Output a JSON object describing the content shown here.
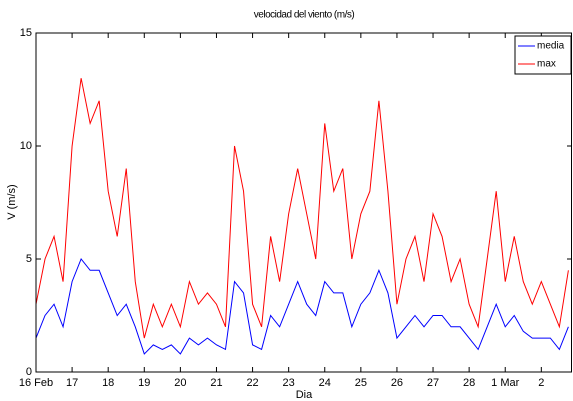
{
  "chart_data": {
    "type": "line",
    "title": "velocidad del viento (m/s)",
    "xlabel": "Dia",
    "ylabel": "V (m/s)",
    "x": [
      16,
      16.25,
      16.5,
      16.75,
      17,
      17.25,
      17.5,
      17.75,
      18,
      18.25,
      18.5,
      18.75,
      19,
      19.25,
      19.5,
      19.75,
      20,
      20.25,
      20.5,
      20.75,
      21,
      21.25,
      21.5,
      21.75,
      22,
      22.25,
      22.5,
      22.75,
      23,
      23.25,
      23.5,
      23.75,
      24,
      24.25,
      24.5,
      24.75,
      25,
      25.25,
      25.5,
      25.75,
      26,
      26.25,
      26.5,
      26.75,
      27,
      27.25,
      27.5,
      27.75,
      28,
      28.25,
      28.5,
      28.75,
      29,
      29.25,
      29.5,
      29.75,
      30,
      30.25,
      30.5,
      30.75
    ],
    "series": [
      {
        "name": "media",
        "color": "#0000ff",
        "values": [
          1.5,
          2.5,
          3,
          2,
          4,
          5,
          4.5,
          4.5,
          3.5,
          2.5,
          3,
          2,
          0.8,
          1.2,
          1,
          1.2,
          0.8,
          1.5,
          1.2,
          1.5,
          1.2,
          1,
          4,
          3.5,
          1.2,
          1,
          2.5,
          2,
          3,
          4,
          3,
          2.5,
          4,
          3.5,
          3.5,
          2,
          3,
          3.5,
          4.5,
          3.5,
          1.5,
          2,
          2.5,
          2,
          2.5,
          2.5,
          2,
          2,
          1.5,
          1,
          2,
          3,
          2,
          2.5,
          1.8,
          1.5,
          1.5,
          1.5,
          1,
          2
        ]
      },
      {
        "name": "max",
        "color": "#ff0000",
        "values": [
          3,
          5,
          6,
          4,
          10,
          13,
          11,
          12,
          8,
          6,
          9,
          4,
          1.5,
          3,
          2,
          3,
          2,
          4,
          3,
          3.5,
          3,
          2,
          10,
          8,
          3,
          2,
          6,
          4,
          7,
          9,
          7,
          5,
          11,
          8,
          9,
          5,
          7,
          8,
          12,
          8,
          3,
          5,
          6,
          4,
          7,
          6,
          4,
          5,
          3,
          2,
          5,
          8,
          4,
          6,
          4,
          3,
          4,
          3,
          2,
          4.5
        ]
      }
    ],
    "xlim": [
      16,
      30.85
    ],
    "xticks": [
      {
        "value": 16,
        "label": "16 Feb"
      },
      17,
      18,
      19,
      20,
      21,
      22,
      23,
      24,
      25,
      26,
      27,
      28,
      {
        "value": 29,
        "label": "1 Mar"
      },
      {
        "value": 30,
        "label": "2"
      }
    ],
    "ylim": [
      0,
      15
    ],
    "yticks": [
      0,
      5,
      10,
      15
    ],
    "legend": "top-right"
  }
}
